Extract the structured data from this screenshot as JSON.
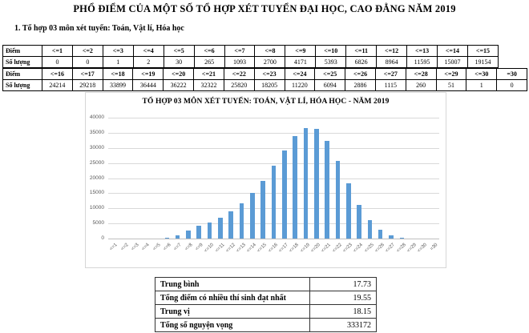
{
  "title": "PHỔ ĐIỂM CỦA MỘT SỐ TỔ HỢP XÉT TUYỂN ĐẠI HỌC, CAO ĐẲNG NĂM 2019",
  "section_heading": "1. Tổ hợp 03 môn xét tuyển: Toán, Vật lí, Hóa học",
  "score_tables": [
    {
      "row_labels": [
        "Điểm",
        "Số lượng"
      ],
      "headers": [
        "<=1",
        "<=2",
        "<=3",
        "<=4",
        "<=5",
        "<=6",
        "<=7",
        "<=8",
        "<=9",
        "<=10",
        "<=11",
        "<=12",
        "<=13",
        "<=14",
        "<=15"
      ],
      "values": [
        0,
        0,
        1,
        2,
        30,
        265,
        1093,
        2700,
        4171,
        5393,
        6826,
        8964,
        11595,
        15007,
        19154
      ]
    },
    {
      "row_labels": [
        "Điểm",
        "Số lượng"
      ],
      "headers": [
        "<=16",
        "<=17",
        "<=18",
        "<=19",
        "<=20",
        "<=21",
        "<=22",
        "<=23",
        "<=24",
        "<=25",
        "<=26",
        "<=27",
        "<=28",
        "<=29",
        "<=30",
        "=30"
      ],
      "values": [
        24214,
        29218,
        33899,
        36444,
        36222,
        32322,
        25820,
        18205,
        11220,
        6094,
        2886,
        1115,
        260,
        51,
        1,
        0
      ]
    }
  ],
  "chart_data": {
    "type": "bar",
    "title": "TỔ HỢP 03 MÔN XÉT TUYỂN: TOÁN, VẬT LÍ, HÓA HỌC - NĂM 2019",
    "categories": [
      "<=1",
      "<=2",
      "<=3",
      "<=4",
      "<=5",
      "<=6",
      "<=7",
      "<=8",
      "<=9",
      "<=10",
      "<=11",
      "<=12",
      "<=13",
      "<=14",
      "<=15",
      "<=16",
      "<=17",
      "<=18",
      "<=19",
      "<=20",
      "<=21",
      "<=22",
      "<=23",
      "<=24",
      "<=25",
      "<=26",
      "<=27",
      "<=28",
      "<=29",
      "<=30",
      "=30"
    ],
    "values": [
      0,
      0,
      1,
      2,
      30,
      265,
      1093,
      2700,
      4171,
      5393,
      6826,
      8964,
      11595,
      15007,
      19154,
      24214,
      29218,
      33899,
      36444,
      36222,
      32322,
      25820,
      18205,
      11220,
      6094,
      2886,
      1115,
      260,
      51,
      1,
      0
    ],
    "yticks": [
      0,
      5000,
      10000,
      15000,
      20000,
      25000,
      30000,
      35000,
      40000
    ],
    "ylim": [
      0,
      40000
    ],
    "xlabel": "",
    "ylabel": "",
    "grid": true,
    "legend": "none",
    "bar_color": "#5b9bd5",
    "gridline_color": "#d9d9d9",
    "tick_label_color": "#595959"
  },
  "summary_table": {
    "rows": [
      {
        "label": "Trung bình",
        "value": "17.73"
      },
      {
        "label": "Tổng điểm có nhiều thí sinh đạt nhất",
        "value": "19.55"
      },
      {
        "label": "Trung vị",
        "value": "18.15"
      },
      {
        "label": "Tổng số nguyện vọng",
        "value": "333172"
      }
    ]
  }
}
